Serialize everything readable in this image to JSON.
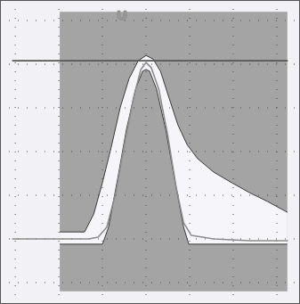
{
  "chart_data": {
    "type": "line",
    "xlim": [
      -3.35,
      3.53
    ],
    "ylim": [
      -3.49,
      3.47
    ],
    "xticks": [
      -3,
      -2,
      -1,
      0,
      1,
      2,
      3
    ],
    "yticks": [
      -3,
      -2,
      -1,
      0,
      1,
      2,
      3
    ],
    "grid": true,
    "tick_labels": false,
    "mask_window": {
      "x": [
        -1.98,
        3.24
      ],
      "y": [
        -3.2,
        3.2
      ],
      "color": "#a4a4a4"
    },
    "series": [
      {
        "type": "mask_upper",
        "color": "#f6f6fa",
        "x": [
          -1.98,
          -1.41,
          -1.2,
          -1.0,
          -0.8,
          -0.59,
          -0.39,
          -0.18,
          0,
          0.16,
          0.33,
          0.53,
          0.73,
          0.94,
          1.18,
          1.55,
          1.96,
          2.37,
          2.78,
          3.24
        ],
        "values": [
          -1.84,
          -1.84,
          -1.43,
          -0.71,
          0.1,
          1.02,
          1.67,
          2.08,
          2.2,
          2.12,
          1.84,
          1.22,
          0.61,
          0.16,
          -0.16,
          -0.47,
          -0.71,
          -0.94,
          -1.14,
          -1.39
        ]
      },
      {
        "type": "mask_lower",
        "color": "#f6f6fa",
        "x": [
          -1.98,
          -1.0,
          -0.86,
          -0.65,
          -0.45,
          -0.24,
          -0.08,
          0,
          0.08,
          0.24,
          0.45,
          0.65,
          0.86,
          0.98,
          3.24
        ],
        "values": [
          -2.12,
          -2.12,
          -1.73,
          -0.61,
          0.51,
          1.43,
          1.84,
          1.88,
          1.84,
          1.43,
          0.51,
          -0.61,
          -1.73,
          -2.12,
          -2.12
        ]
      },
      {
        "type": "line",
        "color": "#8c8c8c",
        "x": [
          -3.06,
          -2.12,
          -1.31,
          -1.1,
          -0.9,
          -0.69,
          -0.49,
          -0.29,
          -0.12,
          0,
          0.12,
          0.29,
          0.49,
          0.69,
          0.86,
          1.04,
          1.55,
          2.37,
          3.24
        ],
        "values": [
          -2.0,
          -2.0,
          -2.0,
          -1.96,
          -1.73,
          -0.92,
          0.2,
          1.22,
          1.88,
          2.04,
          1.92,
          1.43,
          0.41,
          -0.82,
          -1.63,
          -1.92,
          -2.0,
          -2.04,
          -2.04
        ]
      },
      {
        "type": "line",
        "color": "#555555",
        "x": [
          -3.06,
          3.24
        ],
        "values": [
          2.08,
          2.08
        ]
      }
    ]
  }
}
